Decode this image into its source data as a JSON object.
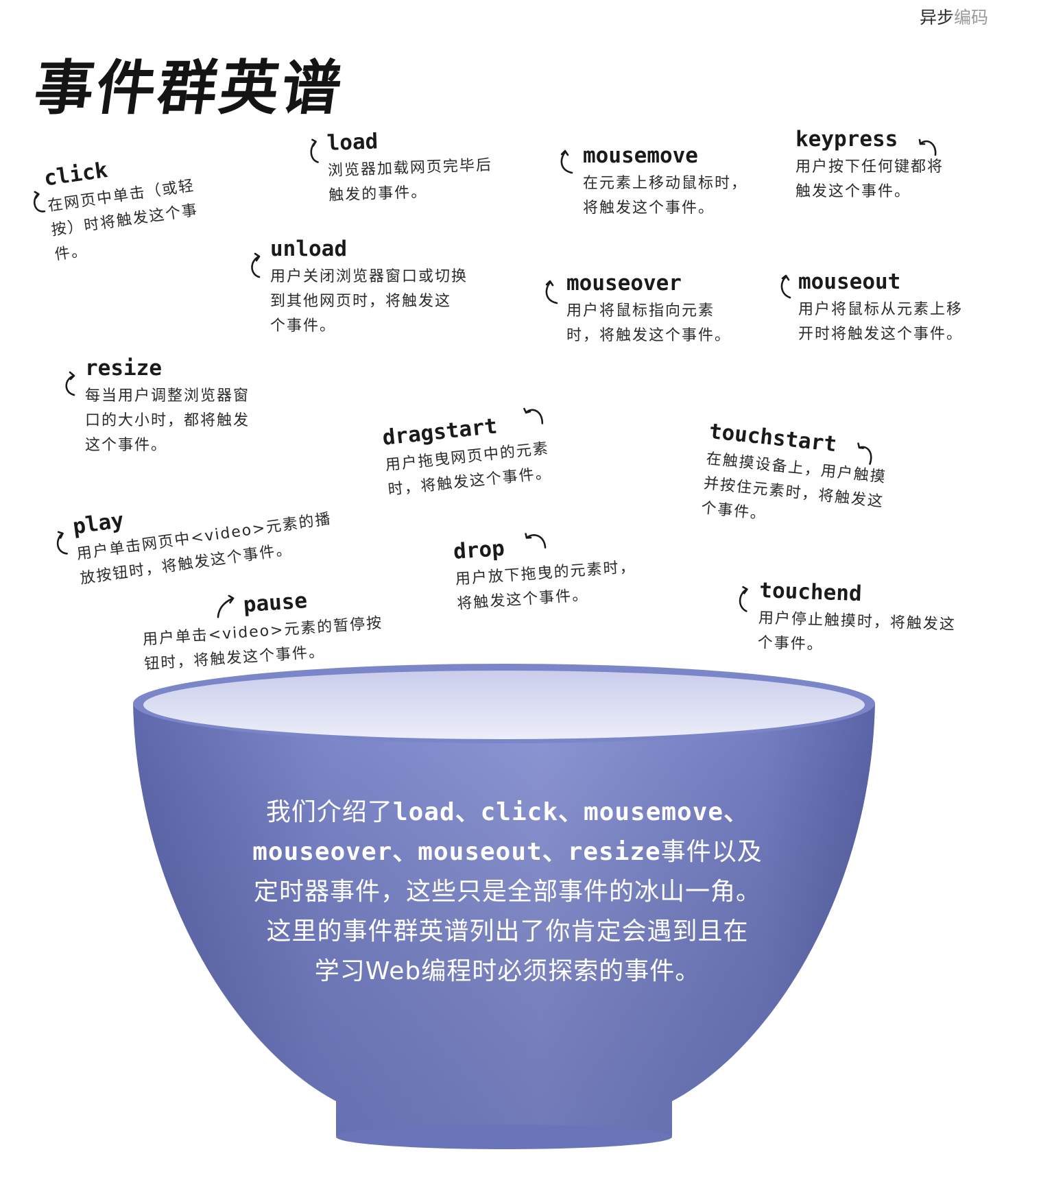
{
  "header": {
    "book_part1": "异步",
    "book_part2": "编码"
  },
  "title": "事件群英谱",
  "events": {
    "click": {
      "name": "click",
      "desc": "在网页中单击（或轻\n按）时将触发这个事\n件。"
    },
    "load": {
      "name": "load",
      "desc": "浏览器加载网页完毕后\n触发的事件。"
    },
    "mousemove": {
      "name": "mousemove",
      "desc": "在元素上移动鼠标时，\n将触发这个事件。"
    },
    "keypress": {
      "name": "keypress",
      "desc": "用户按下任何键都将\n触发这个事件。"
    },
    "unload": {
      "name": "unload",
      "desc": "用户关闭浏览器窗口或切换\n到其他网页时，将触发这\n个事件。"
    },
    "mouseover": {
      "name": "mouseover",
      "desc": "用户将鼠标指向元素\n时，将触发这个事件。"
    },
    "mouseout": {
      "name": "mouseout",
      "desc": "用户将鼠标从元素上移\n开时将触发这个事件。"
    },
    "resize": {
      "name": "resize",
      "desc": "每当用户调整浏览器窗\n口的大小时，都将触发\n这个事件。"
    },
    "dragstart": {
      "name": "dragstart",
      "desc": "用户拖曳网页中的元素\n时，将触发这个事件。"
    },
    "touchstart": {
      "name": "touchstart",
      "desc": "在触摸设备上，用户触摸\n并按住元素时，将触发这\n个事件。"
    },
    "play": {
      "name": "play",
      "desc": "用户单击网页中<video>元素的播\n放按钮时，将触发这个事件。"
    },
    "drop": {
      "name": "drop",
      "desc": "用户放下拖曳的元素时，\n将触发这个事件。"
    },
    "pause": {
      "name": "pause",
      "desc": "用户单击<video>元素的暂停按\n钮时，将触发这个事件。"
    },
    "touchend": {
      "name": "touchend",
      "desc": "用户停止触摸时，将触发这\n个事件。"
    }
  },
  "bowl": {
    "line1_a": "我们介绍了",
    "line1_b": "load、click、mousemove、",
    "line2_a": "mouseover、mouseout、resize",
    "line2_b": "事件以及",
    "line3": "定时器事件，这些只是全部事件的冰山一角。",
    "line4": "这里的事件群英谱列出了你肯定会遇到且在",
    "line5": "学习Web编程时必须探索的事件。",
    "colors": {
      "outer": "#7b86c9",
      "rim_inner": "#dfe1f3",
      "base": "#6a74b8"
    }
  }
}
